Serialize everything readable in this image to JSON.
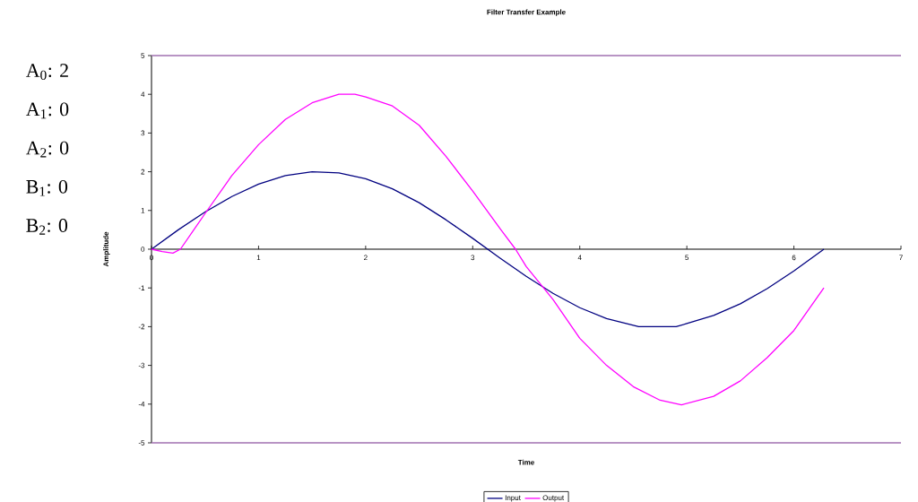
{
  "chart_data": {
    "type": "line",
    "title": "Filter Transfer Example",
    "xlabel": "Time",
    "ylabel": "Amplitude",
    "xlim": [
      0,
      7
    ],
    "xticks": [
      0,
      1,
      2,
      3,
      4,
      5,
      6,
      7
    ],
    "ylim": [
      -5,
      5
    ],
    "yticks": [
      -5,
      -4,
      -3,
      -2,
      -1,
      0,
      1,
      2,
      3,
      4,
      5
    ],
    "legend": "bottom",
    "annotations": [
      "A$_{0}$: 2",
      "A$_{1}$: 0",
      "A$_{2}$: 0",
      "B$_{1}$: 0",
      "B$_{2}$: 0"
    ],
    "series": [
      {
        "name": "Input",
        "color": "#000080",
        "x": [
          0,
          0.25,
          0.5,
          0.75,
          1.0,
          1.25,
          1.5,
          1.75,
          2.0,
          2.25,
          2.5,
          2.75,
          3.0,
          3.25,
          3.5,
          3.75,
          4.0,
          4.25,
          4.55,
          4.9,
          5.0,
          5.25,
          5.5,
          5.75,
          6.0,
          6.28
        ],
        "values": [
          0,
          0.5,
          0.96,
          1.36,
          1.68,
          1.9,
          2.0,
          1.97,
          1.82,
          1.56,
          1.2,
          0.76,
          0.28,
          -0.22,
          -0.7,
          -1.14,
          -1.51,
          -1.79,
          -2.0,
          -2.0,
          -1.92,
          -1.71,
          -1.41,
          -1.02,
          -0.56,
          0
        ]
      },
      {
        "name": "Output",
        "color": "#ff00ff",
        "x": [
          0,
          0.1,
          0.2,
          0.27,
          0.5,
          0.75,
          1.0,
          1.25,
          1.5,
          1.75,
          1.9,
          2.0,
          2.25,
          2.5,
          2.75,
          3.0,
          3.25,
          3.4,
          3.5,
          3.75,
          4.0,
          4.25,
          4.5,
          4.75,
          4.95,
          5.25,
          5.5,
          5.75,
          6.0,
          6.28
        ],
        "values": [
          0,
          -0.06,
          -0.1,
          0,
          0.92,
          1.9,
          2.7,
          3.35,
          3.78,
          4.0,
          4.0,
          3.93,
          3.7,
          3.2,
          2.4,
          1.5,
          0.55,
          0,
          -0.45,
          -1.3,
          -2.3,
          -3.0,
          -3.55,
          -3.9,
          -4.02,
          -3.8,
          -3.4,
          -2.8,
          -2.1,
          -1.0
        ]
      }
    ]
  }
}
